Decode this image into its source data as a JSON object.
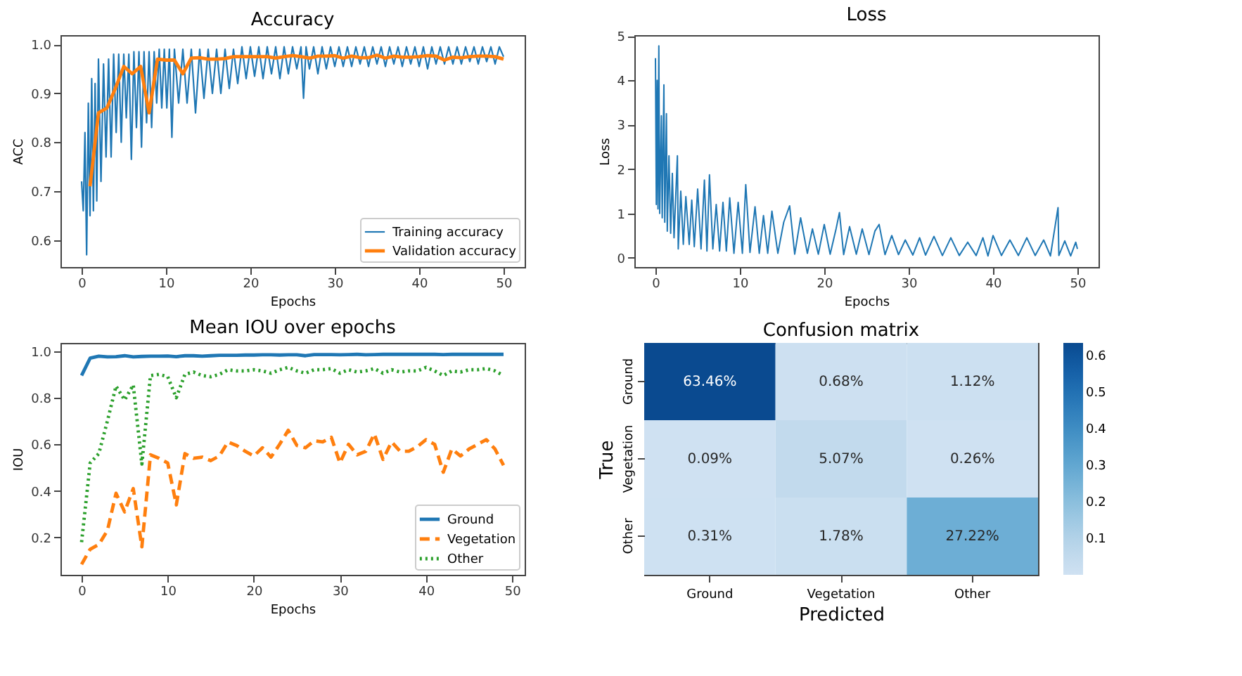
{
  "chart_data": [
    {
      "type": "line",
      "title": "Accuracy",
      "xlabel": "Epochs",
      "ylabel": "ACC",
      "xlim": [
        -2.5,
        52.5
      ],
      "xticks": [
        0,
        10,
        20,
        30,
        40,
        50
      ],
      "ylim": [
        0.545,
        1.019
      ],
      "yticks": [
        0.6,
        0.7,
        0.8,
        0.9,
        {
          "value": 1,
          "label": "1.0"
        }
      ],
      "grid": false,
      "legend": "bottom right",
      "series": [
        {
          "name": "Training accuracy",
          "color": "#1f77b4",
          "line_style": "solid",
          "x": [
            0,
            0.2,
            0.4,
            0.6,
            0.8,
            1.0,
            1.2,
            1.4,
            1.6,
            1.8,
            2.0,
            2.3,
            2.6,
            2.9,
            3.2,
            3.5,
            3.8,
            4.1,
            4.4,
            4.7,
            5.0,
            5.3,
            5.6,
            5.9,
            6.2,
            6.5,
            6.8,
            7.1,
            7.4,
            7.7,
            8.0,
            8.3,
            8.6,
            8.9,
            9.2,
            9.5,
            9.8,
            10.1,
            10.4,
            10.7,
            11.0,
            11.5,
            12.0,
            12.5,
            13.0,
            13.5,
            14.0,
            14.5,
            15.0,
            15.5,
            16.0,
            16.5,
            17.0,
            17.5,
            18.0,
            18.5,
            19.0,
            19.5,
            20.0,
            20.5,
            21.0,
            21.5,
            22.0,
            22.5,
            23.0,
            23.5,
            24.0,
            24.5,
            25.0,
            25.5,
            26.0,
            26.3,
            26.6,
            27.0,
            27.5,
            28.0,
            28.5,
            29.0,
            29.5,
            30.0,
            30.5,
            31.0,
            31.5,
            32.0,
            32.5,
            33.0,
            33.5,
            34.0,
            34.5,
            35.0,
            35.5,
            36.0,
            36.5,
            37.0,
            37.5,
            38.0,
            38.5,
            39.0,
            39.5,
            40.0,
            40.5,
            41.0,
            41.5,
            42.0,
            42.5,
            43.0,
            43.5,
            44.0,
            44.5,
            45.0,
            45.5,
            46.0,
            46.5,
            47.0,
            47.5,
            48.0,
            48.5,
            49.0,
            49.5,
            50.0
          ],
          "values": [
            0.72,
            0.66,
            0.82,
            0.57,
            0.88,
            0.65,
            0.93,
            0.66,
            0.92,
            0.68,
            0.97,
            0.72,
            0.96,
            0.77,
            0.97,
            0.77,
            0.98,
            0.82,
            0.98,
            0.8,
            0.98,
            0.85,
            0.98,
            0.765,
            0.985,
            0.83,
            0.985,
            0.79,
            0.985,
            0.84,
            0.985,
            0.83,
            0.985,
            0.88,
            0.99,
            0.87,
            0.99,
            0.87,
            0.99,
            0.81,
            0.99,
            0.88,
            0.99,
            0.88,
            0.99,
            0.86,
            0.99,
            0.89,
            0.99,
            0.9,
            0.99,
            0.9,
            0.99,
            0.91,
            0.99,
            0.92,
            0.995,
            0.93,
            0.995,
            0.935,
            0.995,
            0.93,
            0.995,
            0.94,
            0.995,
            0.93,
            0.995,
            0.94,
            0.995,
            0.95,
            0.995,
            0.89,
            0.995,
            0.95,
            0.995,
            0.94,
            0.995,
            0.95,
            0.995,
            0.955,
            0.995,
            0.955,
            0.995,
            0.955,
            0.995,
            0.96,
            0.995,
            0.955,
            0.995,
            0.96,
            0.995,
            0.955,
            0.995,
            0.96,
            0.995,
            0.955,
            0.995,
            0.96,
            0.995,
            0.955,
            0.995,
            0.95,
            0.995,
            0.96,
            0.995,
            0.96,
            0.995,
            0.96,
            0.995,
            0.96,
            0.995,
            0.965,
            0.995,
            0.96,
            0.995,
            0.965,
            0.995,
            0.96,
            0.995,
            0.975
          ]
        },
        {
          "name": "Validation accuracy",
          "color": "#ff7f0e",
          "line_style": "solid",
          "x": [
            1,
            2,
            3,
            4,
            5,
            6,
            7,
            8,
            9,
            10,
            11,
            12,
            13,
            14,
            15,
            16,
            17,
            18,
            19,
            20,
            21,
            22,
            23,
            24,
            25,
            26,
            27,
            28,
            29,
            30,
            31,
            32,
            33,
            34,
            35,
            36,
            37,
            38,
            39,
            40,
            41,
            42,
            43,
            44,
            45,
            46,
            47,
            48,
            49,
            50
          ],
          "values": [
            0.71,
            0.86,
            0.87,
            0.91,
            0.955,
            0.94,
            0.955,
            0.86,
            0.97,
            0.968,
            0.968,
            0.94,
            0.972,
            0.973,
            0.97,
            0.97,
            0.971,
            0.975,
            0.975,
            0.975,
            0.975,
            0.975,
            0.972,
            0.975,
            0.977,
            0.975,
            0.972,
            0.976,
            0.976,
            0.977,
            0.972,
            0.976,
            0.973,
            0.973,
            0.978,
            0.972,
            0.976,
            0.974,
            0.974,
            0.975,
            0.977,
            0.976,
            0.968,
            0.974,
            0.973,
            0.975,
            0.976,
            0.976,
            0.975,
            0.97
          ]
        }
      ]
    },
    {
      "type": "line",
      "title": "Loss",
      "xlabel": "Epochs",
      "ylabel": "Loss",
      "xlim": [
        -2.5,
        52.5
      ],
      "xticks": [
        0,
        10,
        20,
        30,
        40,
        50
      ],
      "ylim": [
        -0.21,
        5.02
      ],
      "yticks": [
        0,
        1,
        2,
        3,
        4,
        5
      ],
      "grid": false,
      "series": [
        {
          "color": "#1f77b4",
          "line_style": "solid",
          "x": [
            0,
            0.1,
            0.2,
            0.3,
            0.4,
            0.5,
            0.7,
            0.8,
            1.0,
            1.1,
            1.3,
            1.4,
            1.6,
            1.8,
            2.0,
            2.2,
            2.6,
            2.7,
            3.0,
            3.3,
            3.6,
            4.0,
            4.3,
            4.6,
            5.0,
            5.4,
            5.8,
            6.1,
            6.4,
            6.8,
            7.2,
            7.6,
            8.0,
            8.4,
            8.8,
            9.3,
            9.8,
            10.3,
            10.7,
            11.2,
            11.8,
            12.3,
            12.8,
            13.3,
            13.8,
            14.5,
            15.2,
            15.9,
            16.5,
            17.2,
            18.0,
            18.6,
            19.3,
            20.0,
            20.7,
            21.4,
            21.8,
            22.3,
            23.0,
            23.8,
            24.5,
            25.3,
            26.0,
            26.5,
            27.2,
            28.0,
            28.8,
            29.6,
            30.5,
            31.3,
            32.0,
            33.0,
            34.0,
            35.0,
            36.0,
            37.0,
            38.0,
            38.8,
            39.4,
            40.0,
            41.0,
            42.0,
            43.0,
            44.0,
            45.0,
            46.0,
            46.8,
            47.7,
            47.8,
            48.5,
            49.2,
            49.8,
            50.0
          ],
          "values": [
            4.5,
            1.2,
            4.0,
            1.1,
            4.78,
            1.0,
            3.2,
            0.9,
            3.9,
            0.8,
            3.25,
            0.6,
            2.3,
            0.55,
            1.9,
            0.45,
            2.3,
            0.2,
            1.5,
            0.3,
            1.38,
            0.3,
            1.3,
            0.25,
            1.55,
            0.2,
            1.75,
            0.15,
            1.87,
            0.2,
            1.2,
            0.15,
            1.25,
            0.15,
            1.35,
            0.1,
            1.25,
            0.1,
            1.65,
            0.12,
            1.15,
            0.1,
            0.95,
            0.1,
            1.05,
            0.1,
            0.8,
            1.17,
            0.08,
            0.9,
            0.1,
            0.65,
            0.08,
            0.75,
            0.08,
            0.65,
            1.02,
            0.07,
            0.7,
            0.08,
            0.65,
            0.07,
            0.6,
            0.75,
            0.07,
            0.5,
            0.07,
            0.4,
            0.06,
            0.45,
            0.06,
            0.48,
            0.05,
            0.45,
            0.05,
            0.35,
            0.05,
            0.45,
            0.04,
            0.5,
            0.05,
            0.4,
            0.05,
            0.45,
            0.05,
            0.4,
            0.04,
            1.13,
            0.05,
            0.38,
            0.04,
            0.35,
            0.2
          ]
        }
      ]
    },
    {
      "type": "line",
      "title": "Mean IOU over epochs",
      "xlabel": "Epochs",
      "ylabel": "IOU",
      "xlim": [
        -2.45,
        51.45
      ],
      "xticks": [
        0,
        10,
        20,
        30,
        40,
        50
      ],
      "ylim": [
        0.04,
        1.035
      ],
      "yticks": [
        0.2,
        0.4,
        0.6,
        0.8,
        {
          "value": 1,
          "label": "1.0"
        }
      ],
      "grid": false,
      "legend": "bottom right",
      "x": [
        0,
        1,
        2,
        3,
        4,
        5,
        6,
        7,
        8,
        9,
        10,
        11,
        12,
        13,
        14,
        15,
        16,
        17,
        18,
        19,
        20,
        21,
        22,
        23,
        24,
        25,
        26,
        27,
        28,
        29,
        30,
        31,
        32,
        33,
        34,
        35,
        36,
        37,
        38,
        39,
        40,
        41,
        42,
        43,
        44,
        45,
        46,
        47,
        48,
        49
      ],
      "series": [
        {
          "name": "Ground",
          "color": "#1f77b4",
          "line_style": "solid",
          "values": [
            0.895,
            0.97,
            0.978,
            0.975,
            0.976,
            0.98,
            0.975,
            0.977,
            0.978,
            0.978,
            0.979,
            0.976,
            0.98,
            0.98,
            0.978,
            0.98,
            0.982,
            0.982,
            0.982,
            0.983,
            0.983,
            0.984,
            0.984,
            0.983,
            0.984,
            0.984,
            0.98,
            0.985,
            0.985,
            0.985,
            0.984,
            0.985,
            0.986,
            0.984,
            0.985,
            0.986,
            0.986,
            0.986,
            0.986,
            0.986,
            0.986,
            0.986,
            0.985,
            0.986,
            0.986,
            0.986,
            0.986,
            0.986,
            0.986,
            0.986
          ]
        },
        {
          "name": "Vegetation",
          "color": "#ff7f0e",
          "line_style": "dashed",
          "values": [
            0.085,
            0.15,
            0.17,
            0.23,
            0.39,
            0.31,
            0.41,
            0.16,
            0.555,
            0.54,
            0.52,
            0.34,
            0.56,
            0.54,
            0.545,
            0.53,
            0.55,
            0.61,
            0.595,
            0.57,
            0.55,
            0.585,
            0.545,
            0.6,
            0.66,
            0.595,
            0.585,
            0.615,
            0.61,
            0.63,
            0.52,
            0.6,
            0.555,
            0.57,
            0.645,
            0.535,
            0.61,
            0.57,
            0.57,
            0.59,
            0.62,
            0.6,
            0.48,
            0.58,
            0.55,
            0.58,
            0.6,
            0.62,
            0.58,
            0.51
          ]
        },
        {
          "name": "Other",
          "color": "#2ca02c",
          "line_style": "dotted",
          "values": [
            0.18,
            0.52,
            0.56,
            0.7,
            0.85,
            0.79,
            0.855,
            0.515,
            0.895,
            0.9,
            0.89,
            0.8,
            0.9,
            0.91,
            0.895,
            0.89,
            0.9,
            0.92,
            0.915,
            0.915,
            0.92,
            0.915,
            0.905,
            0.92,
            0.93,
            0.915,
            0.905,
            0.92,
            0.92,
            0.925,
            0.905,
            0.92,
            0.91,
            0.915,
            0.925,
            0.905,
            0.92,
            0.91,
            0.915,
            0.915,
            0.93,
            0.915,
            0.895,
            0.915,
            0.91,
            0.92,
            0.92,
            0.925,
            0.915,
            0.895
          ]
        }
      ]
    },
    {
      "type": "heatmap",
      "title": "Confusion matrix",
      "xlabel": "Predicted",
      "ylabel": "True",
      "categories": [
        "Ground",
        "Vegetation",
        "Other"
      ],
      "y_categories": [
        "Ground",
        "Vegetation",
        "Other"
      ],
      "cells": [
        [
          0.6346,
          0.0068,
          0.0112
        ],
        [
          0.0009,
          0.0507,
          0.0026
        ],
        [
          0.0031,
          0.0178,
          0.2722
        ]
      ],
      "cell_labels": [
        [
          "63.46%",
          "0.68%",
          "1.12%"
        ],
        [
          "0.09%",
          "5.07%",
          "0.26%"
        ],
        [
          "0.31%",
          "1.78%",
          "27.22%"
        ]
      ],
      "clim": [
        0.0009,
        0.6346
      ],
      "cticks": [
        0.1,
        0.2,
        0.3,
        0.4,
        0.5,
        0.6
      ]
    }
  ]
}
